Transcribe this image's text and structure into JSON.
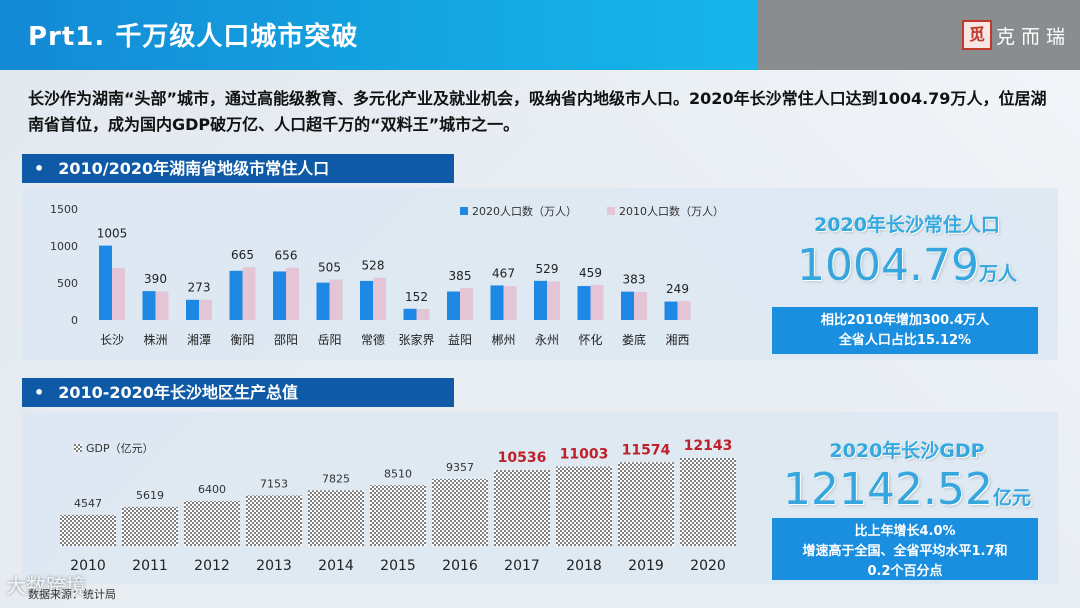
{
  "header": {
    "title": "Prt1. 千万级人口城市突破",
    "logo_seal": "觅",
    "logo_text": "克而瑞"
  },
  "intro": "长沙作为湖南“头部”城市，通过高能级教育、多元化产业及就业机会，吸纳省内地级市人口。2020年长沙常住人口达到1004.79万人，位居湖南省首位，成为国内GDP破万亿、人口超千万的“双料王”城市之一。",
  "sections": {
    "population_title": "2010/2020年湖南省地级市常住人口",
    "gdp_title": "2010-2020年长沙地区生产总值",
    "bullet": "•"
  },
  "population_stat": {
    "title": "2020年长沙常住人口",
    "value": "1004.79",
    "unit": "万人",
    "note_line1": "相比2010年增加300.4万人",
    "note_line2": "全省人口占比15.12%"
  },
  "gdp_stat": {
    "title": "2020年长沙GDP",
    "value": "12142.52",
    "unit": "亿元",
    "note_line1": "比上年增长4.0%",
    "note_line2": "增速高于全国、全省平均水平1.7和",
    "note_line3": "0.2个百分点"
  },
  "footer": {
    "source": "数据来源：统计局",
    "watermark": "大数跨境"
  },
  "colors": {
    "series_2020": "#1e88e5",
    "series_2010": "#e3c5d6",
    "gdp_label_normal": "#333333",
    "gdp_label_highlight": "#c0202a",
    "gdp_bar": "#7f7f7f"
  },
  "chart_data": [
    {
      "type": "bar",
      "title": "",
      "categories": [
        "长沙",
        "株洲",
        "湘潭",
        "衡阳",
        "邵阳",
        "岳阳",
        "常德",
        "张家界",
        "益阳",
        "郴州",
        "永州",
        "怀化",
        "娄底",
        "湘西"
      ],
      "series": [
        {
          "name": "2020人口数（万人）",
          "values": [
            1005,
            390,
            273,
            665,
            656,
            505,
            528,
            152,
            385,
            467,
            529,
            459,
            383,
            249
          ]
        },
        {
          "name": "2010人口数（万人）",
          "values": [
            704,
            386,
            275,
            714,
            707,
            548,
            572,
            148,
            431,
            458,
            519,
            474,
            379,
            255
          ]
        }
      ],
      "data_labels": [
        1005,
        390,
        273,
        665,
        656,
        505,
        528,
        152,
        385,
        467,
        529,
        459,
        383,
        249
      ],
      "yticks": [
        0,
        500,
        1000,
        1500
      ],
      "ylim": [
        0,
        1500
      ],
      "legend_position": "top-right",
      "grid": false
    },
    {
      "type": "bar",
      "title": "",
      "legend": "GDP（亿元）",
      "categories": [
        "2010",
        "2011",
        "2012",
        "2013",
        "2014",
        "2015",
        "2016",
        "2017",
        "2018",
        "2019",
        "2020"
      ],
      "series": [
        {
          "name": "GDP（亿元）",
          "values": [
            4547,
            5619,
            6400,
            7153,
            7825,
            8510,
            9357,
            10536,
            11003,
            11574,
            12143
          ]
        }
      ],
      "highlight_from_index": 7,
      "legend_position": "top-left",
      "grid": false
    }
  ]
}
